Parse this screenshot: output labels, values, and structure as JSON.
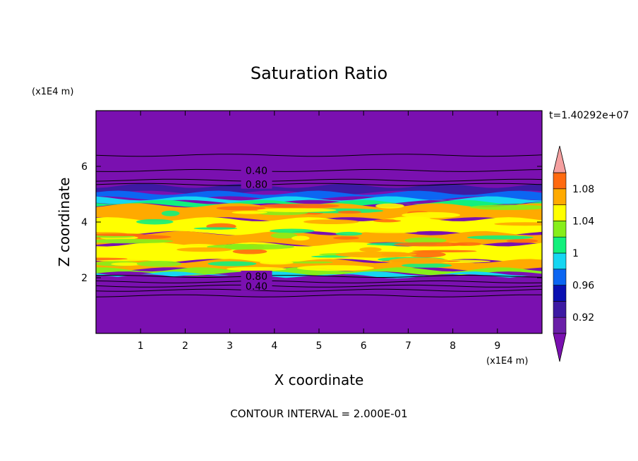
{
  "chart_data": {
    "type": "heatmap",
    "title": "Saturation Ratio",
    "xlabel": "X coordinate",
    "ylabel": "Z coordinate",
    "x_unit": "(x1E4 m)",
    "y_unit": "(x1E4 m)",
    "xlim": [
      0,
      10
    ],
    "ylim": [
      0,
      8
    ],
    "x_ticks": [
      "1",
      "2",
      "3",
      "4",
      "5",
      "6",
      "7",
      "8",
      "9"
    ],
    "y_ticks": [
      "2",
      "4",
      "6"
    ],
    "time_label": "t=1.40292e+07",
    "footer": "CONTOUR INTERVAL = 2.000E-01",
    "contour_labels": [
      "0.40",
      "0.80",
      "0.80",
      "0.40"
    ],
    "colorbar": {
      "levels": [
        0.9,
        0.92,
        0.94,
        0.96,
        0.98,
        1.0,
        1.02,
        1.04,
        1.06,
        1.08,
        1.1
      ],
      "tick_labels": [
        "0.92",
        "0.96",
        "1",
        "1.04",
        "1.08"
      ],
      "colors": [
        "#6a1fa8",
        "#3d1aa3",
        "#0a10b2",
        "#0c66f2",
        "#16d6f2",
        "#12f07c",
        "#86ee1a",
        "#ffff00",
        "#ffaa00",
        "#ff6a10",
        "#ff2a2a"
      ],
      "over_color": "#f5a0a0",
      "under_color": "#7a10b0"
    },
    "layers": [
      {
        "z_bottom": 5.3,
        "z_top": 8.0,
        "color": "#7a10b0"
      },
      {
        "z_bottom": 5.05,
        "z_top": 5.3,
        "color": "#3d1aa3"
      },
      {
        "z_bottom": 4.85,
        "z_top": 5.05,
        "color": "#0c66f2"
      },
      {
        "z_bottom": 4.72,
        "z_top": 4.85,
        "color": "#16d6f2"
      },
      {
        "z_bottom": 4.6,
        "z_top": 4.72,
        "color": "#12f07c"
      },
      {
        "z_bottom": 4.1,
        "z_top": 4.6,
        "color": "#ffaa00"
      },
      {
        "z_bottom": 3.6,
        "z_top": 4.1,
        "color": "#ffff00"
      },
      {
        "z_bottom": 3.2,
        "z_top": 3.6,
        "color": "#ffaa00"
      },
      {
        "z_bottom": 2.6,
        "z_top": 3.2,
        "color": "#ffff00"
      },
      {
        "z_bottom": 2.3,
        "z_top": 2.6,
        "color": "#ffaa00"
      },
      {
        "z_bottom": 2.15,
        "z_top": 2.3,
        "color": "#86ee1a"
      },
      {
        "z_bottom": 2.05,
        "z_top": 2.15,
        "color": "#16d6f2"
      },
      {
        "z_bottom": 0.0,
        "z_top": 2.05,
        "color": "#7a10b0"
      }
    ],
    "contour_lines_z": [
      6.4,
      5.85,
      5.5,
      5.35,
      2.05,
      1.85,
      1.7,
      1.55,
      1.35
    ]
  }
}
